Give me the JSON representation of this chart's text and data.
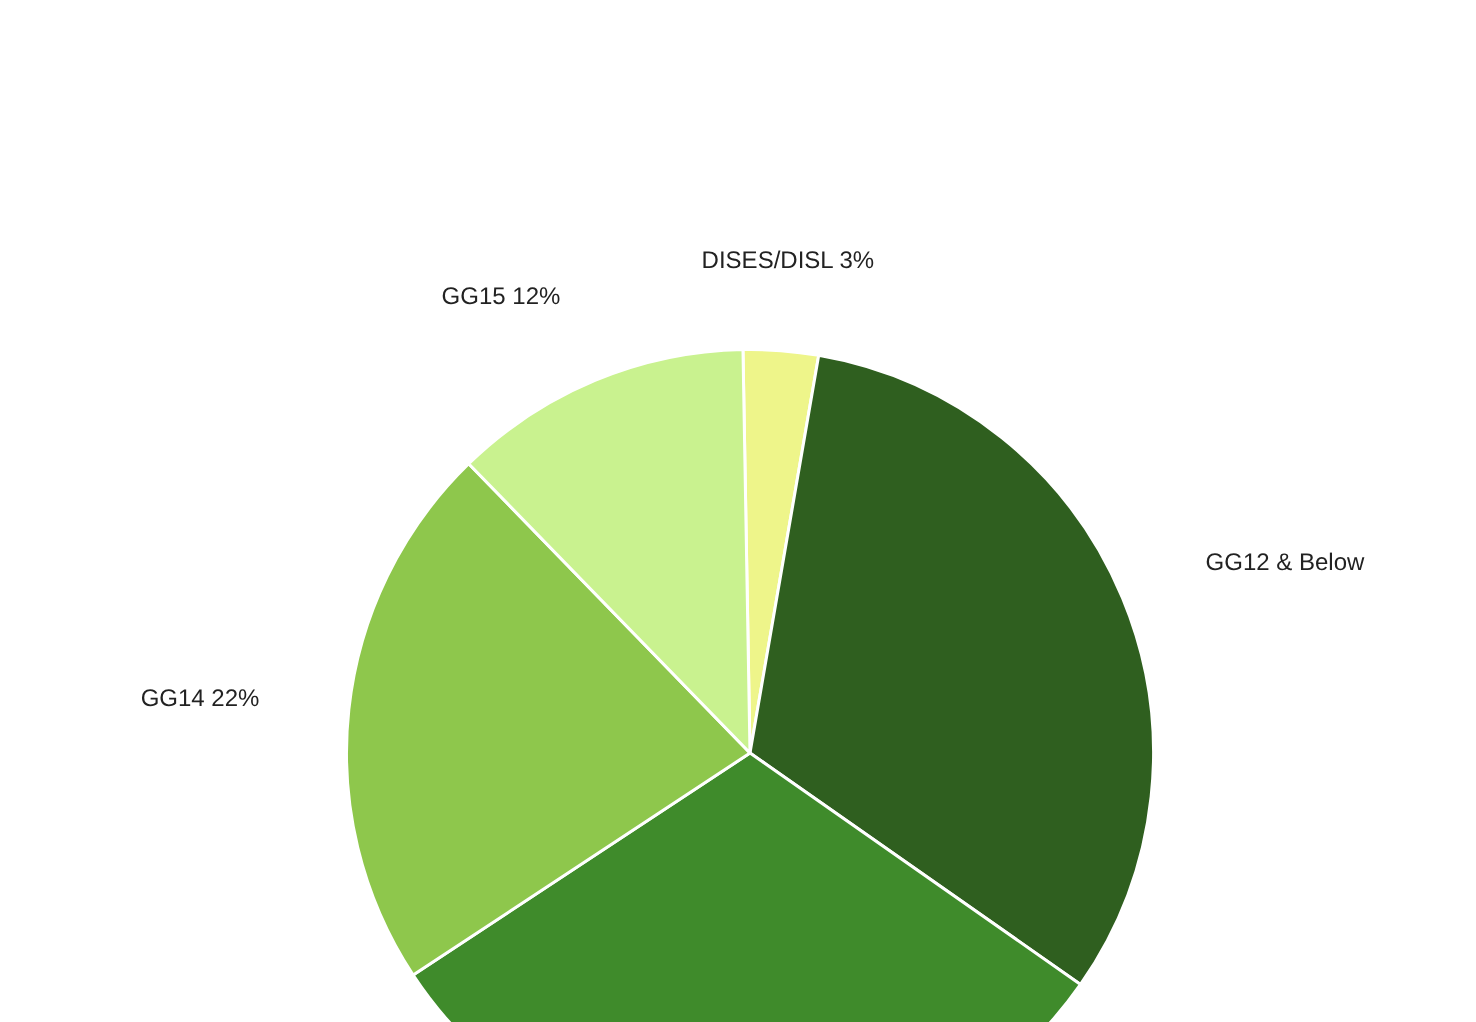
{
  "chart_data": {
    "type": "pie",
    "categories": [
      "DISES/DISL",
      "GG12 & Below",
      null,
      "GG14",
      "GG15"
    ],
    "values": [
      3,
      32,
      31,
      22,
      12
    ],
    "colors": [
      "#eef58a",
      "#2f5f1f",
      "#3f8b2b",
      "#8ec74c",
      "#c9f28f"
    ],
    "value_labels": [
      "3%",
      null,
      null,
      "22%",
      "12%"
    ],
    "legend": false
  }
}
